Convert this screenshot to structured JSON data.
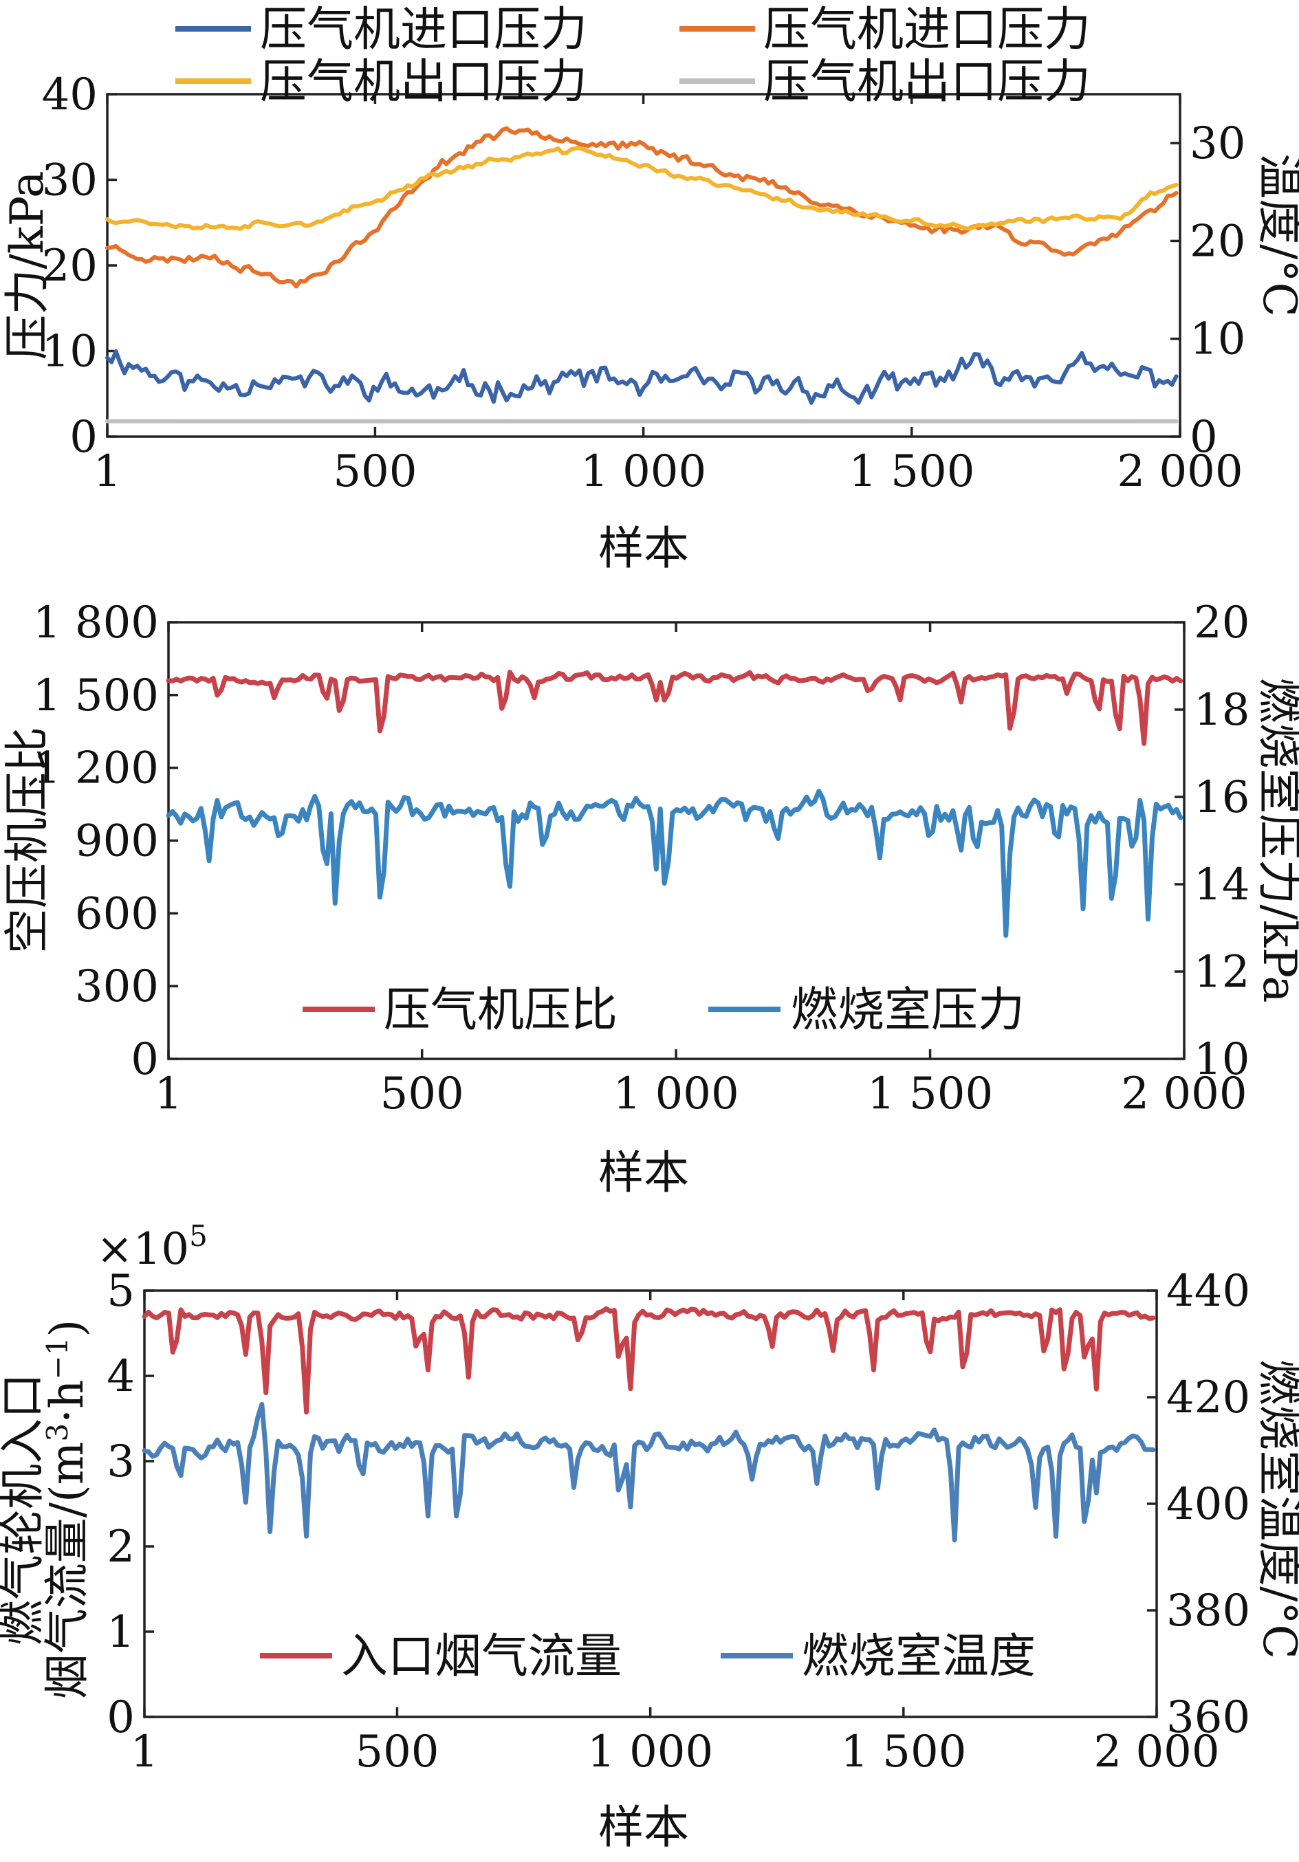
{
  "chart_data": [
    {
      "type": "line",
      "x_range": [
        1,
        2000
      ],
      "x_ticks": [
        "1",
        "500",
        "1 000",
        "1 500",
        "2 000"
      ],
      "x_tick_values": [
        1,
        500,
        1000,
        1500,
        2000
      ],
      "xlabel": "样本",
      "ylabel_left": "压力/kPa",
      "ylabel_right": "温度/°C",
      "ylim_left": [
        0,
        40
      ],
      "ylim_right": [
        0,
        35
      ],
      "y_ticks_left": [
        "0",
        "10",
        "20",
        "30",
        "40"
      ],
      "y_tick_values_left": [
        0,
        10,
        20,
        30,
        40
      ],
      "y_ticks_right": [
        "0",
        "10",
        "20",
        "30"
      ],
      "y_tick_values_right": [
        0,
        10,
        20,
        30
      ],
      "legend": {
        "placement": "top",
        "columns": 2
      },
      "series": [
        {
          "name": "压气机进口压力",
          "axis": "left",
          "color": "#3a63a8",
          "noise": 1.6,
          "seed": 11,
          "x": [
            1,
            100,
            200,
            300,
            400,
            500,
            600,
            700,
            800,
            900,
            1000,
            1100,
            1200,
            1300,
            1400,
            1500,
            1600,
            1700,
            1800,
            1900,
            2000
          ],
          "values": [
            10,
            7,
            6,
            7,
            6,
            6,
            5,
            6,
            6,
            7,
            6,
            6,
            6,
            6,
            5,
            6,
            8,
            7,
            8,
            7,
            7
          ]
        },
        {
          "name": "压气机进口压力",
          "axis": "right",
          "color": "#e5712a",
          "noise": 0.5,
          "seed": 23,
          "x": [
            1,
            100,
            200,
            300,
            350,
            400,
            500,
            600,
            700,
            780,
            900,
            1000,
            1100,
            1200,
            1300,
            1400,
            1500,
            1600,
            1650,
            1700,
            1800,
            1900,
            2000
          ],
          "values": [
            19.5,
            18,
            18.5,
            16.5,
            15.5,
            17,
            21,
            27,
            30.5,
            31.5,
            30,
            29.5,
            28,
            26.5,
            24.5,
            23,
            21.5,
            21,
            22,
            20,
            19,
            21,
            25
          ]
        },
        {
          "name": "压气机出口压力",
          "axis": "left",
          "color": "#f4b32c",
          "noise": 0.4,
          "seed": 37,
          "x": [
            1,
            100,
            200,
            300,
            400,
            500,
            600,
            700,
            800,
            900,
            1000,
            1100,
            1200,
            1300,
            1400,
            1500,
            1600,
            1700,
            1800,
            1900,
            1950,
            2000
          ],
          "values": [
            25.5,
            25,
            24.5,
            25,
            25,
            27.5,
            30.5,
            32,
            33,
            33.5,
            31.5,
            30,
            28.5,
            27,
            26,
            25,
            24.5,
            25,
            25.5,
            26,
            28.5,
            29.5
          ]
        },
        {
          "name": "压气机出口压力",
          "axis": "left",
          "color": "#bfbfbf",
          "noise": 0,
          "seed": 41,
          "x": [
            1,
            2000
          ],
          "values": [
            1.8,
            1.8
          ]
        }
      ]
    },
    {
      "type": "line",
      "x_range": [
        1,
        2000
      ],
      "x_ticks": [
        "1",
        "500",
        "1 000",
        "1 500",
        "2 000"
      ],
      "x_tick_values": [
        1,
        500,
        1000,
        1500,
        2000
      ],
      "xlabel": "样本",
      "ylabel_left": "空压机压比",
      "ylabel_right": "燃烧室压力/kPa",
      "ylim_left": [
        0,
        1800
      ],
      "ylim_right": [
        10,
        20
      ],
      "y_ticks_left": [
        "0",
        "300",
        "600",
        "900",
        "1 200",
        "1 500",
        "1 800"
      ],
      "y_tick_values_left": [
        0,
        300,
        600,
        900,
        1200,
        1500,
        1800
      ],
      "y_ticks_right": [
        "10",
        "12",
        "14",
        "16",
        "18",
        "20"
      ],
      "y_tick_values_right": [
        10,
        12,
        14,
        16,
        18,
        20
      ],
      "legend": {
        "placement": "bottom",
        "columns": 2
      },
      "series": [
        {
          "name": "压气机压比",
          "axis": "left",
          "color": "#c8424a",
          "noise": 18,
          "seed": 53,
          "x": [
            1,
            2000
          ],
          "values": [
            1570,
            1570
          ],
          "dips": [
            [
              100,
              1470
            ],
            [
              210,
              1480
            ],
            [
              310,
              1450
            ],
            [
              340,
              1380
            ],
            [
              420,
              1260
            ],
            [
              660,
              1390
            ],
            [
              720,
              1480
            ],
            [
              960,
              1470
            ],
            [
              980,
              1440
            ],
            [
              1380,
              1500
            ],
            [
              1440,
              1470
            ],
            [
              1560,
              1460
            ],
            [
              1660,
              1270
            ],
            [
              1770,
              1500
            ],
            [
              1830,
              1390
            ],
            [
              1870,
              1270
            ],
            [
              1920,
              1270
            ]
          ]
        },
        {
          "name": "燃烧室压力",
          "axis": "right",
          "color": "#3a84bf",
          "noise": 0.3,
          "seed": 67,
          "x": [
            1,
            2000
          ],
          "values": [
            15.7,
            15.7
          ],
          "dips": [
            [
              80,
              14.4
            ],
            [
              220,
              15.0
            ],
            [
              310,
              14.0
            ],
            [
              330,
              13.3
            ],
            [
              420,
              12.8
            ],
            [
              670,
              13.1
            ],
            [
              740,
              14.5
            ],
            [
              960,
              14.2
            ],
            [
              980,
              13.2
            ],
            [
              1200,
              15.0
            ],
            [
              1400,
              14.5
            ],
            [
              1500,
              14.8
            ],
            [
              1560,
              14.7
            ],
            [
              1590,
              14.5
            ],
            [
              1650,
              12.5
            ],
            [
              1750,
              14.8
            ],
            [
              1800,
              13.2
            ],
            [
              1860,
              12.9
            ],
            [
              1900,
              14.6
            ],
            [
              1930,
              12.9
            ]
          ]
        }
      ]
    },
    {
      "type": "line",
      "x_range": [
        1,
        2000
      ],
      "x_ticks": [
        "1",
        "500",
        "1 000",
        "1 500",
        "2 000"
      ],
      "x_tick_values": [
        1,
        500,
        1000,
        1500,
        2000
      ],
      "xlabel": "样本",
      "ylabel_left_line1": "燃气轮机入口",
      "ylabel_left_line2": "烟气流量/(m³·h⁻¹)",
      "ylabel_left_prefix": "烟气流量/(m",
      "ylabel_left_sup1": "3",
      "ylabel_left_mid": "·h",
      "ylabel_left_sup2": "−1",
      "ylabel_left_suffix": ")",
      "ylabel_right": "燃烧室温度/°C",
      "scale_note_base": "×10",
      "scale_note_exp": "5",
      "ylim_left": [
        0,
        5
      ],
      "ylim_right": [
        360,
        440
      ],
      "y_ticks_left": [
        "0",
        "1",
        "2",
        "3",
        "4",
        "5"
      ],
      "y_tick_values_left": [
        0,
        1,
        2,
        3,
        4,
        5
      ],
      "y_ticks_right": [
        "360",
        "380",
        "400",
        "420",
        "440"
      ],
      "y_tick_values_right": [
        360,
        380,
        400,
        420,
        440
      ],
      "legend": {
        "placement": "bottom",
        "columns": 2
      },
      "series": [
        {
          "name": "入口烟气流量",
          "axis": "left",
          "color": "#c8424a",
          "noise": 0.06,
          "seed": 79,
          "x": [
            1,
            2000
          ],
          "values": [
            4.72,
            4.72
          ],
          "dips": [
            [
              60,
              4.1
            ],
            [
              200,
              4.2
            ],
            [
              240,
              3.7
            ],
            [
              320,
              3.45
            ],
            [
              540,
              4.2
            ],
            [
              560,
              4.0
            ],
            [
              640,
              3.9
            ],
            [
              860,
              4.3
            ],
            [
              940,
              4.0
            ],
            [
              960,
              3.75
            ],
            [
              1240,
              4.3
            ],
            [
              1360,
              4.25
            ],
            [
              1440,
              4.0
            ],
            [
              1550,
              4.1
            ],
            [
              1620,
              3.85
            ],
            [
              1780,
              4.1
            ],
            [
              1820,
              3.8
            ],
            [
              1860,
              4.0
            ],
            [
              1880,
              3.75
            ]
          ]
        },
        {
          "name": "燃烧室温度",
          "axis": "right",
          "color": "#4a7fb8",
          "noise": 1.8,
          "seed": 97,
          "x": [
            1,
            2000
          ],
          "values": [
            411,
            411
          ],
          "dips": [
            [
              70,
              403
            ],
            [
              200,
              399
            ],
            [
              250,
              393
            ],
            [
              320,
              392
            ],
            [
              430,
              403
            ],
            [
              560,
              396
            ],
            [
              620,
              392
            ],
            [
              850,
              402
            ],
            [
              940,
              399
            ],
            [
              960,
              398
            ],
            [
              1200,
              404
            ],
            [
              1330,
              403
            ],
            [
              1450,
              402
            ],
            [
              1600,
              391
            ],
            [
              1760,
              398
            ],
            [
              1800,
              392
            ],
            [
              1860,
              391
            ],
            [
              1880,
              401
            ]
          ],
          "peaks": [
            [
              230,
              422
            ],
            [
              1560,
              414
            ]
          ]
        }
      ]
    }
  ]
}
